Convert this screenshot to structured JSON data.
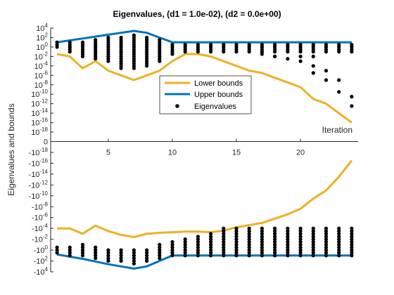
{
  "chart_data": {
    "type": "line",
    "title": "Eigenvalues, (d1 = 1.0e-02), (d2 = 0.0e+00)",
    "xlabel": "Iteration",
    "ylabel": "Eigenvalues and bounds",
    "xlim": [
      0.5,
      24.5
    ],
    "ylim_exponent": [
      -20,
      4
    ],
    "y_scale": "symmetric log (positive half above 0, negative half below 0, exponent of |value|)",
    "grid": false,
    "legend_placement": "center",
    "x_ticks": [
      5,
      10,
      15,
      20
    ],
    "x_tick_labels": [
      "5",
      "10",
      "15",
      "20"
    ],
    "y_ticks_positive": [
      {
        "e": 4,
        "label": "10^4"
      },
      {
        "e": 2,
        "label": "10^2"
      },
      {
        "e": 0,
        "label": "10^0"
      },
      {
        "e": -2,
        "label": "10^-2"
      },
      {
        "e": -4,
        "label": "10^-4"
      },
      {
        "e": -6,
        "label": "10^-6"
      },
      {
        "e": -8,
        "label": "10^-8"
      },
      {
        "e": -10,
        "label": "10^-10"
      },
      {
        "e": -12,
        "label": "10^-12"
      },
      {
        "e": -14,
        "label": "10^-14"
      },
      {
        "e": -16,
        "label": "10^-16"
      },
      {
        "e": -18,
        "label": "10^-18"
      }
    ],
    "y_ticks_negative": [
      {
        "e": -18,
        "label": "-10^-18"
      },
      {
        "e": -16,
        "label": "-10^-16"
      },
      {
        "e": -14,
        "label": "-10^-14"
      },
      {
        "e": -12,
        "label": "-10^-12"
      },
      {
        "e": -10,
        "label": "-10^-10"
      },
      {
        "e": -8,
        "label": "-10^-8"
      },
      {
        "e": -6,
        "label": "-10^-6"
      },
      {
        "e": -4,
        "label": "-10^-4"
      },
      {
        "e": -2,
        "label": "-10^-2"
      },
      {
        "e": 0,
        "label": "-10^0"
      },
      {
        "e": 2,
        "label": "-10^2"
      },
      {
        "e": 4,
        "label": "-10^4"
      }
    ],
    "zero_label": "0",
    "x": [
      1,
      2,
      3,
      4,
      5,
      6,
      7,
      8,
      9,
      10,
      11,
      12,
      13,
      14,
      15,
      16,
      17,
      18,
      19,
      20,
      21,
      22,
      23,
      24
    ],
    "series": [
      {
        "name": "Lower bounds",
        "color": "#EDB120",
        "style": "line",
        "positive_exponent": [
          -1.5,
          -2,
          -4.5,
          -3,
          -5,
          -6,
          -7,
          -6,
          -5,
          -3,
          -1.5,
          -1.5,
          -2,
          -3,
          -4,
          -5,
          -5.5,
          -6.5,
          -7.5,
          -8.5,
          -11,
          -12,
          -14,
          -16
        ],
        "negative_exponent": [
          -4,
          -4,
          -3,
          -4.5,
          -3.5,
          -2.8,
          -2.4,
          -3,
          -3.2,
          -3.3,
          -3.4,
          -3.4,
          -3.3,
          -3.6,
          -4.2,
          -4.6,
          -5,
          -5.8,
          -6.6,
          -7.6,
          -9.5,
          -11,
          -13.5,
          -16.5
        ]
      },
      {
        "name": "Upper bounds",
        "color": "#0072BD",
        "style": "line",
        "positive_exponent": [
          1,
          1.4,
          1.8,
          2.2,
          2.6,
          3,
          3.4,
          3,
          2,
          1,
          1,
          1,
          1,
          1,
          1,
          1,
          1,
          1,
          1,
          1,
          1,
          1,
          1,
          1
        ],
        "negative_exponent": [
          0.8,
          1.2,
          1.6,
          2.1,
          2.6,
          3,
          3.4,
          3,
          2,
          1,
          1,
          1,
          1,
          1,
          1,
          1,
          1,
          1,
          1,
          1,
          1,
          1,
          1,
          1
        ]
      },
      {
        "name": "Eigenvalues",
        "color": "#000000",
        "style": "points",
        "positive_exponent": [
          [
            1,
            0.5,
            0
          ],
          [
            1,
            0.5,
            0,
            -0.5,
            -1
          ],
          [
            1,
            0.5,
            0,
            -0.5,
            -1,
            -1.5,
            -2
          ],
          [
            1.5,
            1,
            0.5,
            0,
            -0.5,
            -1,
            -1.5,
            -2,
            -2.5
          ],
          [
            2,
            1.5,
            1,
            0.5,
            0,
            -0.5,
            -1,
            -1.5,
            -2,
            -2.5,
            -3
          ],
          [
            2,
            1.5,
            1,
            0.5,
            0,
            -0.5,
            -1,
            -1.5,
            -2,
            -2.5,
            -3,
            -3.5,
            -4,
            -4.5
          ],
          [
            2.5,
            2,
            1.5,
            1,
            0.5,
            0,
            -0.5,
            -1,
            -1.5,
            -2,
            -2.5,
            -3,
            -3.5,
            -4,
            -4.5
          ],
          [
            2,
            1.5,
            1,
            0.5,
            0,
            -0.5,
            -1,
            -1.5,
            -2,
            -2.5,
            -3,
            -3.5,
            -4
          ],
          [
            1.5,
            1,
            0.5,
            0,
            -0.5,
            -1,
            -1.5,
            -2,
            -2.5,
            -3
          ],
          [
            0.5,
            0,
            -0.5,
            -1,
            -1.5
          ],
          [
            0.5,
            0,
            -0.5,
            -1
          ],
          [
            0.5,
            0,
            -0.5,
            -1
          ],
          [
            0.5,
            0,
            -0.5,
            -1
          ],
          [
            0.5,
            0,
            -0.5,
            -1
          ],
          [
            0.5,
            0,
            -0.5,
            -1
          ],
          [
            0.5,
            0,
            -0.5,
            -1
          ],
          [
            0.5,
            0,
            -0.5,
            -1,
            -1.5
          ],
          [
            0.5,
            0,
            -0.5,
            -1,
            -2
          ],
          [
            0.5,
            0,
            -0.5,
            -1,
            -2.5
          ],
          [
            0.5,
            0,
            -0.5,
            -1,
            -2,
            -3
          ],
          [
            0.5,
            0,
            -0.5,
            -1,
            -2,
            -4,
            -5.5
          ],
          [
            0.5,
            0,
            -0.5,
            -1,
            -5,
            -7
          ],
          [
            0.5,
            0,
            -0.5,
            -1,
            -7,
            -9.5
          ],
          [
            0.5,
            0,
            -0.5,
            -1,
            -10.5,
            -12.5
          ]
        ],
        "negative_exponent": [
          [
            0.5,
            0,
            -0.5
          ],
          [
            1,
            0.5,
            0,
            -0.5
          ],
          [
            1,
            0.5,
            0,
            -0.5,
            -1
          ],
          [
            1.5,
            1,
            0.5,
            0,
            -0.5
          ],
          [
            2,
            1.5,
            1,
            0.5,
            0
          ],
          [
            2,
            1.5,
            1,
            0.5,
            0
          ],
          [
            2.5,
            2,
            1.5,
            1,
            0.5,
            0
          ],
          [
            2,
            1.5,
            1,
            0.5,
            0
          ],
          [
            1.5,
            1,
            0.5,
            0,
            -0.5,
            -1
          ],
          [
            1,
            0.5,
            0,
            -0.5,
            -1,
            -1.5
          ],
          [
            1,
            0.5,
            0,
            -0.5,
            -1,
            -1.5,
            -2
          ],
          [
            1,
            0.5,
            0,
            -0.5,
            -1,
            -1.5,
            -2,
            -2.5
          ],
          [
            1,
            0.5,
            0,
            -0.5,
            -1,
            -1.5,
            -2,
            -2.5,
            -3
          ],
          [
            1,
            0.5,
            0,
            -0.5,
            -1,
            -1.5,
            -2,
            -2.5,
            -3,
            -3.5,
            -4
          ],
          [
            1,
            0.5,
            0,
            -0.5,
            -1,
            -1.5,
            -2,
            -2.5,
            -3,
            -3.5,
            -4
          ],
          [
            1,
            0.5,
            0,
            -0.5,
            -1,
            -1.5,
            -2,
            -2.5,
            -3,
            -3.5,
            -4
          ],
          [
            1,
            0.5,
            0,
            -0.5,
            -1,
            -1.5,
            -2,
            -2.5,
            -3,
            -3.5,
            -4
          ],
          [
            1,
            0.5,
            0,
            -0.5,
            -1,
            -1.5,
            -2,
            -2.5,
            -3,
            -3.5,
            -4
          ],
          [
            1,
            0.5,
            0,
            -0.5,
            -1,
            -1.5,
            -2,
            -2.5,
            -3,
            -3.5,
            -4
          ],
          [
            1,
            0.5,
            0,
            -0.5,
            -1,
            -1.5,
            -2,
            -2.5,
            -3,
            -3.5,
            -4
          ],
          [
            1,
            0.5,
            0,
            -0.5,
            -1,
            -1.5,
            -2,
            -2.5,
            -3,
            -3.5,
            -4
          ],
          [
            1,
            0.5,
            0,
            -0.5,
            -1,
            -1.5,
            -2,
            -2.5,
            -3,
            -3.5,
            -4
          ],
          [
            1,
            0.5,
            0,
            -0.5,
            -1,
            -1.5,
            -2,
            -2.5,
            -3,
            -3.5,
            -4
          ],
          [
            1,
            0.5,
            0,
            -0.5,
            -1,
            -1.5,
            -2,
            -2.5,
            -3,
            -3.5,
            -4
          ]
        ]
      }
    ]
  }
}
